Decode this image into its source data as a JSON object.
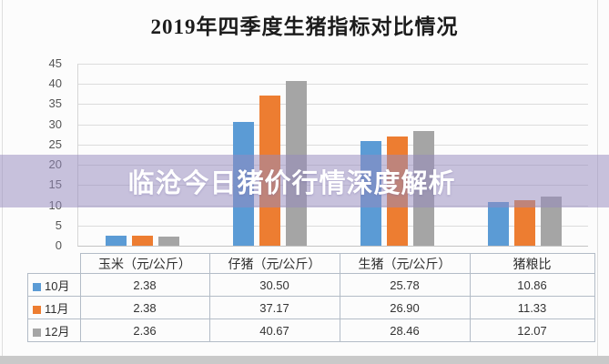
{
  "page": {
    "background": "#fcfcfc",
    "side_border_color": "#dedede",
    "bottom_strip_color": "#c9c9c9"
  },
  "overlay": {
    "text": "临沧今日猪价行情深度解析",
    "band_color": "rgba(149,139,189,0.52)",
    "text_color": "#ffffff"
  },
  "chart_data": {
    "type": "bar",
    "title": "2019年四季度生猪指标对比情况",
    "categories": [
      "玉米（元/公斤）",
      "仔猪（元/公斤）",
      "生猪（元/公斤）",
      "猪粮比"
    ],
    "series": [
      {
        "name": "10月",
        "color": "#5B9BD5",
        "values": [
          2.38,
          30.5,
          25.78,
          10.86
        ]
      },
      {
        "name": "11月",
        "color": "#ED7D31",
        "values": [
          2.38,
          37.17,
          26.9,
          11.33
        ]
      },
      {
        "name": "12月",
        "color": "#A5A5A5",
        "values": [
          2.36,
          40.67,
          28.46,
          12.07
        ]
      }
    ],
    "xlabel": "",
    "ylabel": "",
    "ylim": [
      0,
      45
    ],
    "ytick_step": 5,
    "grid": true,
    "gridline_color": "#dcdcdc",
    "tick_label_color": "#555555",
    "legend_position": "table-left-column",
    "value_decimals": 2
  }
}
